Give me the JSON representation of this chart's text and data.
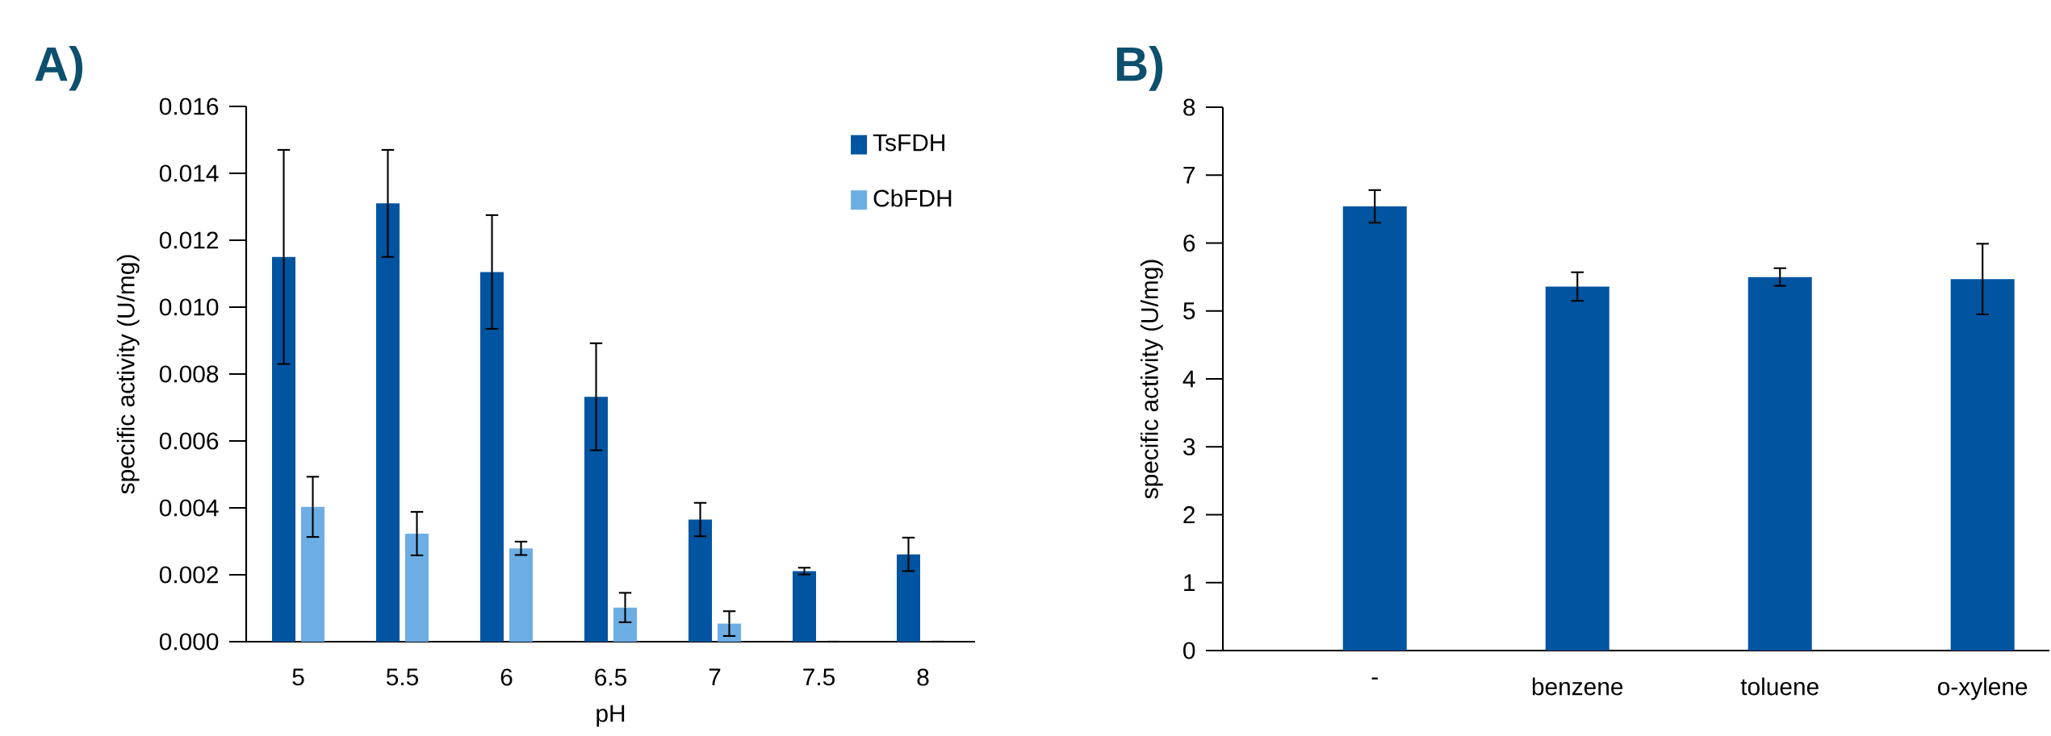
{
  "chart_data": [
    {
      "type": "bar",
      "title": "A)",
      "xlabel": "pH",
      "ylabel": "specific activity (U/mg)",
      "categories": [
        "5",
        "5.5",
        "6",
        "6.5",
        "7",
        "7.5",
        "8"
      ],
      "series": [
        {
          "name": "TsFDH",
          "color": "#0054a0",
          "values": [
            0.0115,
            0.0131,
            0.01105,
            0.00732,
            0.00365,
            0.00211,
            0.00261
          ],
          "errors": [
            0.0032,
            0.0016,
            0.0017,
            0.0016,
            0.0005,
            0.0001,
            0.0005
          ]
        },
        {
          "name": "CbFDH",
          "color": "#6caee4",
          "values": [
            0.00403,
            0.00323,
            0.00279,
            0.00102,
            0.00054,
            0,
            0
          ],
          "errors": [
            0.0009,
            0.00065,
            0.0002,
            0.00044,
            0.00037,
            null,
            null
          ]
        }
      ],
      "ylim": [
        0,
        0.016
      ],
      "yticks": [
        {
          "value": 0,
          "label": "0.000"
        },
        {
          "value": 0.002,
          "label": "0.002"
        },
        {
          "value": 0.004,
          "label": "0.004"
        },
        {
          "value": 0.006,
          "label": "0.006"
        },
        {
          "value": 0.008,
          "label": "0.008"
        },
        {
          "value": 0.01,
          "label": "0.010"
        },
        {
          "value": 0.012,
          "label": "0.012"
        },
        {
          "value": 0.014,
          "label": "0.014"
        },
        {
          "value": 0.016,
          "label": "0.016"
        }
      ],
      "legend": "top right"
    },
    {
      "type": "bar",
      "title": "B)",
      "ylabel": "specific activity (U/mg)",
      "categories": [
        "-",
        "benzene",
        "toluene",
        "o-xylene"
      ],
      "values": [
        6.54,
        5.36,
        5.5,
        5.47
      ],
      "color": "#0054a0",
      "errors": [
        0.24,
        0.21,
        0.13,
        0.52
      ],
      "ylim": [
        0,
        8
      ],
      "yticks": [
        0,
        1,
        2,
        3,
        4,
        5,
        6,
        7,
        8
      ]
    }
  ]
}
